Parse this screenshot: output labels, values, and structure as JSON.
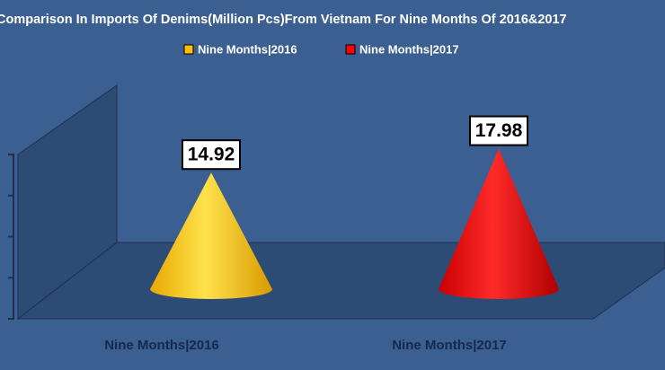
{
  "chart_data": {
    "type": "cone",
    "title": "Comparison In Imports Of Denims(Million Pcs)From Vietnam For Nine Months Of 2016&2017",
    "categories": [
      "Nine Months|2016",
      "Nine Months|2017"
    ],
    "series": [
      {
        "name": "Nine Months|2016",
        "color": "#ffc000",
        "values": [
          14.92,
          null
        ]
      },
      {
        "name": "Nine Months|2017",
        "color": "#ff0000",
        "values": [
          null,
          17.98
        ]
      }
    ],
    "ylim": [
      0,
      20
    ],
    "yticks": [
      0,
      5,
      10,
      15,
      20
    ]
  }
}
